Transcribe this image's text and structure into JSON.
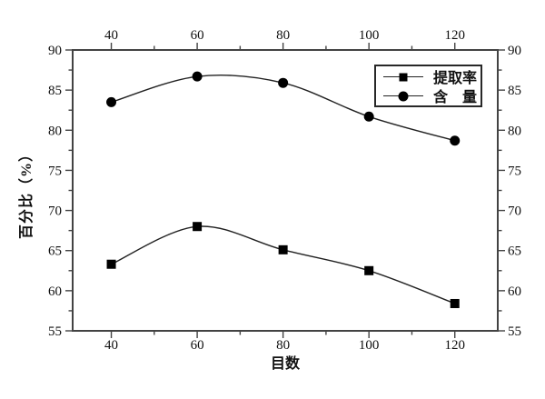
{
  "chart_data": {
    "type": "line",
    "title": "",
    "xlabel": "目数",
    "ylabel": "百分比（%）",
    "x": [
      40,
      60,
      80,
      100,
      120
    ],
    "series": [
      {
        "name": "提取率",
        "marker": "square",
        "values": [
          63.3,
          68.0,
          65.1,
          62.5,
          58.4
        ]
      },
      {
        "name": "含　量",
        "marker": "circle",
        "values": [
          83.5,
          86.7,
          85.9,
          81.7,
          78.7
        ]
      }
    ],
    "xlim": [
      31,
      130
    ],
    "ylim": [
      55,
      90
    ],
    "x_major_ticks": [
      40,
      60,
      80,
      100,
      120
    ],
    "x_minor_ticks": [
      50,
      70,
      90,
      110
    ],
    "y_major_ticks": [
      55,
      60,
      65,
      70,
      75,
      80,
      85,
      90
    ],
    "y_minor_ticks": [
      57.5,
      62.5,
      67.5,
      72.5,
      77.5,
      82.5,
      87.5
    ],
    "grid": false,
    "legend_position": "top-right",
    "ticks_on_all_sides": true,
    "curve_style": "smooth-bspline",
    "colors": {
      "line": "#222222",
      "marker": "#000000",
      "frame": "#434343",
      "text": "#101010",
      "background": "#ffffff"
    }
  }
}
